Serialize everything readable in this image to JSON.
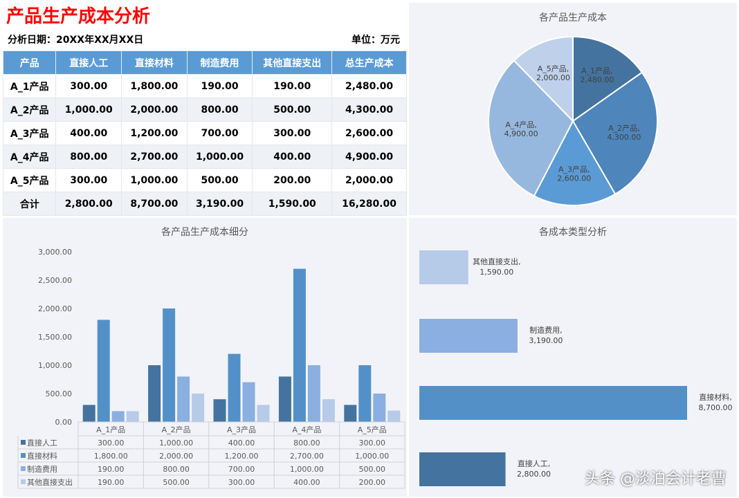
{
  "title": "产品生产成本分析",
  "date_label": "分析日期：20XX年XX月XX日",
  "unit_label": "单位：万元",
  "table": {
    "headers": [
      "产品",
      "直接人工",
      "直接材料",
      "制造费用",
      "其他直接支出",
      "总生产成本"
    ],
    "rows": [
      [
        "A_1产品",
        "300.00",
        "1,800.00",
        "190.00",
        "190.00",
        "2,480.00"
      ],
      [
        "A_2产品",
        "1,000.00",
        "2,000.00",
        "800.00",
        "500.00",
        "4,300.00"
      ],
      [
        "A_3产品",
        "400.00",
        "1,200.00",
        "700.00",
        "300.00",
        "2,600.00"
      ],
      [
        "A_4产品",
        "800.00",
        "2,700.00",
        "1,000.00",
        "400.00",
        "4,900.00"
      ],
      [
        "A_5产品",
        "300.00",
        "1,000.00",
        "500.00",
        "200.00",
        "2,000.00"
      ],
      [
        "合计",
        "2,800.00",
        "8,700.00",
        "3,190.00",
        "1,590.00",
        "16,280.00"
      ]
    ]
  },
  "chart_data": [
    {
      "type": "pie",
      "title": "各产品生产成本",
      "categories": [
        "A_1产品",
        "A_2产品",
        "A_3产品",
        "A_4产品",
        "A_5产品"
      ],
      "values": [
        2480,
        4300,
        2600,
        4900,
        2000
      ],
      "labels": [
        "2,480.00",
        "4,300.00",
        "2,600.00",
        "4,900.00",
        "2,000.00"
      ],
      "colors": [
        "#44739f",
        "#4e86bb",
        "#5b9bd5",
        "#97b8de",
        "#bfd1ea"
      ]
    },
    {
      "type": "bar",
      "title": "各产品生产成本细分",
      "categories": [
        "A_1产品",
        "A_2产品",
        "A_3产品",
        "A_4产品",
        "A_5产品"
      ],
      "ylim": [
        0,
        3000
      ],
      "yticks": [
        "0.00",
        "500.00",
        "1,000.00",
        "1,500.00",
        "2,000.00",
        "2,500.00",
        "3,000.00"
      ],
      "series": [
        {
          "name": "直接人工",
          "values": [
            300,
            1000,
            400,
            800,
            300
          ],
          "labels": [
            "300.00",
            "1,000.00",
            "400.00",
            "800.00",
            "300.00"
          ],
          "color": "#44739f"
        },
        {
          "name": "直接材料",
          "values": [
            1800,
            2000,
            1200,
            2700,
            1000
          ],
          "labels": [
            "1,800.00",
            "2,000.00",
            "1,200.00",
            "2,700.00",
            "1,000.00"
          ],
          "color": "#5390c8"
        },
        {
          "name": "制造费用",
          "values": [
            190,
            800,
            700,
            1000,
            500
          ],
          "labels": [
            "190.00",
            "800.00",
            "700.00",
            "1,000.00",
            "500.00"
          ],
          "color": "#8aafe0"
        },
        {
          "name": "其他直接支出",
          "values": [
            190,
            500,
            300,
            400,
            200
          ],
          "labels": [
            "190.00",
            "500.00",
            "300.00",
            "400.00",
            "200.00"
          ],
          "color": "#b6cbe7"
        }
      ]
    },
    {
      "type": "bar",
      "orientation": "horizontal",
      "title": "各成本类型分析",
      "categories": [
        "其他直接支出",
        "制造费用",
        "直接材料",
        "直接人工"
      ],
      "values": [
        1590,
        3190,
        8700,
        2800
      ],
      "labels": [
        "1,590.00",
        "3,190.00",
        "8,700.00",
        "2,800.00"
      ],
      "colors": [
        "#b6cbe7",
        "#8aafe0",
        "#5390c8",
        "#44739f"
      ],
      "xlim": [
        0,
        8700
      ]
    }
  ],
  "watermark": "头条 @淡泊会计老曹"
}
